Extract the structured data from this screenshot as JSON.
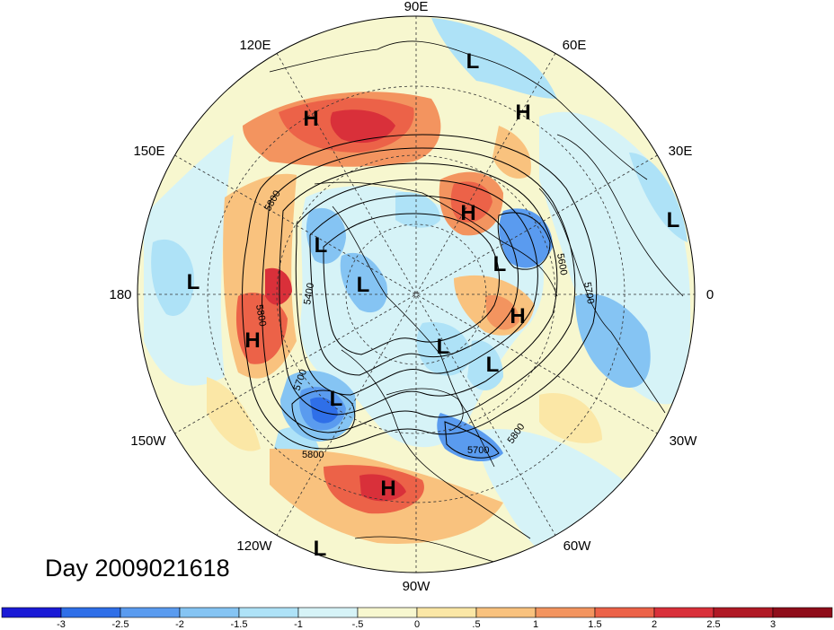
{
  "title": "Day 2009021618",
  "longitude_labels": [
    "90E",
    "60E",
    "30E",
    "0",
    "30W",
    "60W",
    "90W",
    "120W",
    "150W",
    "180",
    "150E",
    "120E"
  ],
  "contour_labels": [
    "5800",
    "5800",
    "5400",
    "5700",
    "5800",
    "5700",
    "5800",
    "5700",
    "5600"
  ],
  "pressure_centers": [
    {
      "label": "L",
      "name": "low-upper-right"
    },
    {
      "label": "H",
      "name": "high-upper-right"
    },
    {
      "label": "H",
      "name": "high-upper-left"
    },
    {
      "label": "H",
      "name": "high-center-upper"
    },
    {
      "label": "L",
      "name": "low-right"
    },
    {
      "label": "L",
      "name": "low-center-1"
    },
    {
      "label": "L",
      "name": "low-center-2"
    },
    {
      "label": "L",
      "name": "low-left-outer"
    },
    {
      "label": "L",
      "name": "low-center-3"
    },
    {
      "label": "H",
      "name": "high-center-right"
    },
    {
      "label": "H",
      "name": "high-left"
    },
    {
      "label": "L",
      "name": "low-center-4"
    },
    {
      "label": "L",
      "name": "low-center-5"
    },
    {
      "label": "L",
      "name": "low-lower-left"
    },
    {
      "label": "H",
      "name": "high-lower"
    },
    {
      "label": "L",
      "name": "low-bottom"
    }
  ],
  "colorbar": {
    "labels": [
      "-3",
      "-2.5",
      "-2",
      "-1.5",
      "-1",
      "-.5",
      "0",
      ".5",
      "1",
      "1.5",
      "2",
      "2.5",
      "3"
    ],
    "colors": [
      "#1a1ad6",
      "#2f6fe8",
      "#5a9bef",
      "#85c4f3",
      "#aee2f7",
      "#d6f3f7",
      "#f7f7cf",
      "#fbe7a6",
      "#f9c27e",
      "#f3945f",
      "#ec6248",
      "#d9303a",
      "#b01925",
      "#8f0d1a"
    ]
  }
}
